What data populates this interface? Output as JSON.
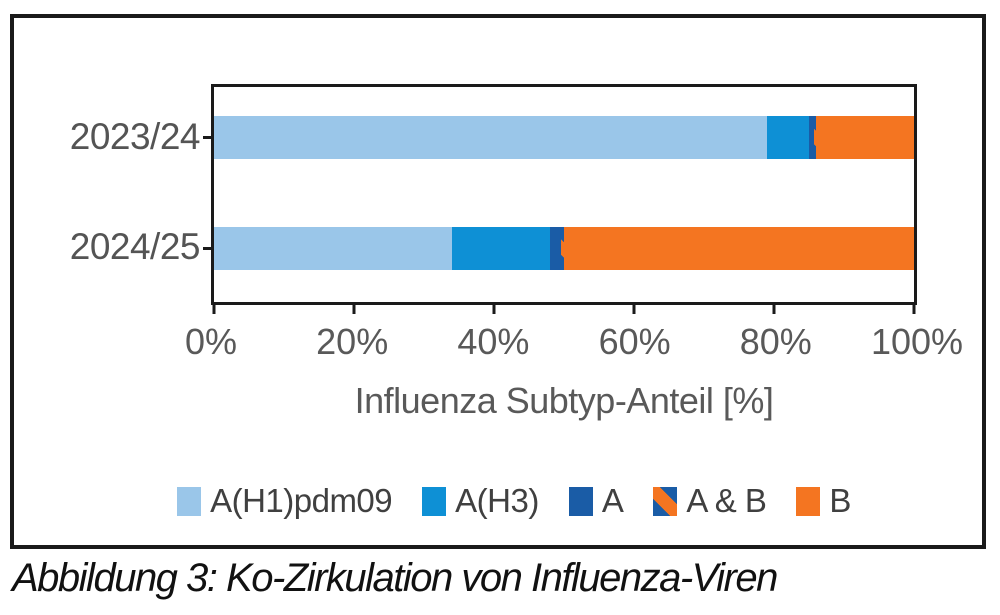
{
  "figure": {
    "caption": "Abbildung 3: Ko-Zirkulation von Influenza-Viren"
  },
  "chart_data": {
    "type": "bar",
    "orientation": "horizontal",
    "stacked": true,
    "title": "",
    "xlabel": "Influenza Subtyp-Anteil [%]",
    "ylabel": "",
    "xlim": [
      0,
      100
    ],
    "xticks": [
      "0%",
      "20%",
      "40%",
      "60%",
      "80%",
      "100%"
    ],
    "grid": false,
    "legend_position": "bottom",
    "categories": [
      "2023/24",
      "2024/25"
    ],
    "series": [
      {
        "name": "A(H1)pdm09",
        "color": "#9AC6E9",
        "values": [
          79,
          34
        ]
      },
      {
        "name": "A(H3)",
        "color": "#0E90D5",
        "values": [
          6,
          14
        ]
      },
      {
        "name": "A",
        "color": "#1A5CA6",
        "values": [
          0.7,
          1.6
        ]
      },
      {
        "name": "A & B",
        "stripe": true,
        "stripe_colors": [
          "#1A5CA6",
          "#F47521"
        ],
        "values": [
          0.3,
          0.4
        ]
      },
      {
        "name": "B",
        "color": "#F47521",
        "values": [
          14,
          50
        ]
      }
    ]
  },
  "colors": {
    "frame": "#1a1a1a",
    "axis": "#1a1a1a",
    "tick_label": "#595959",
    "category_label": "#545454",
    "legend_label": "#404040",
    "caption": "#111111"
  }
}
